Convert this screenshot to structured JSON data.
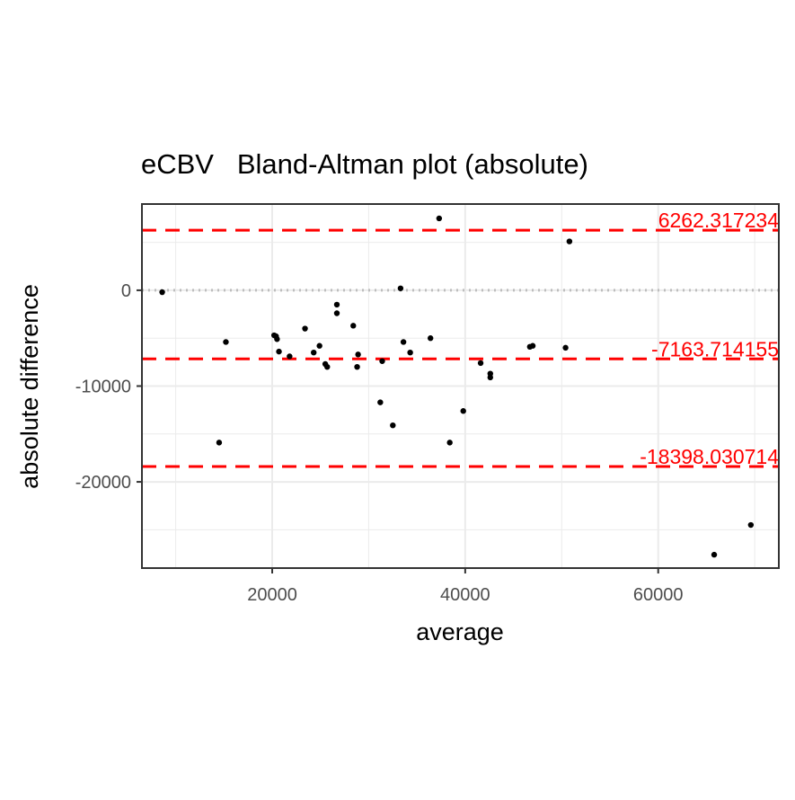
{
  "chart_data": {
    "type": "scatter",
    "title": "eCBV   Bland-Altman plot (absolute)",
    "xlabel": "average",
    "ylabel": "absolute difference",
    "xlim": [
      6500,
      72500
    ],
    "ylim": [
      -29000,
      9000
    ],
    "x_ticks": [
      20000,
      40000,
      60000
    ],
    "x_tick_labels": [
      "20000",
      "40000",
      "60000"
    ],
    "y_ticks": [
      0,
      -10000,
      -20000
    ],
    "y_tick_labels": [
      "0",
      "-10000",
      "-20000"
    ],
    "grid": true,
    "zero_line": 0,
    "reference_lines": [
      {
        "value": 6262.317234,
        "label": "6262.317234",
        "color": "#ff0000",
        "style": "dashed"
      },
      {
        "value": -7163.714155,
        "label": "-7163.714155",
        "color": "#ff0000",
        "style": "dashed"
      },
      {
        "value": -18398.030714,
        "label": "-18398.030714",
        "color": "#ff0000",
        "style": "dashed"
      }
    ],
    "points": [
      {
        "x": 8600,
        "y": -200
      },
      {
        "x": 14500,
        "y": -15900
      },
      {
        "x": 15200,
        "y": -5400
      },
      {
        "x": 20200,
        "y": -4700
      },
      {
        "x": 20400,
        "y": -4800
      },
      {
        "x": 20500,
        "y": -5100
      },
      {
        "x": 20700,
        "y": -6400
      },
      {
        "x": 21800,
        "y": -6900
      },
      {
        "x": 23400,
        "y": -4000
      },
      {
        "x": 24300,
        "y": -6500
      },
      {
        "x": 24900,
        "y": -5800
      },
      {
        "x": 25500,
        "y": -7700
      },
      {
        "x": 25700,
        "y": -8000
      },
      {
        "x": 26700,
        "y": -1500
      },
      {
        "x": 26700,
        "y": -2400
      },
      {
        "x": 28400,
        "y": -3700
      },
      {
        "x": 28800,
        "y": -8000
      },
      {
        "x": 28900,
        "y": -6700
      },
      {
        "x": 31200,
        "y": -11700
      },
      {
        "x": 31400,
        "y": -7400
      },
      {
        "x": 32500,
        "y": -14100
      },
      {
        "x": 33300,
        "y": 200
      },
      {
        "x": 33600,
        "y": -5400
      },
      {
        "x": 34300,
        "y": -6500
      },
      {
        "x": 36400,
        "y": -5000
      },
      {
        "x": 37300,
        "y": 7500
      },
      {
        "x": 38400,
        "y": -15900
      },
      {
        "x": 39800,
        "y": -12600
      },
      {
        "x": 41600,
        "y": -7600
      },
      {
        "x": 42600,
        "y": -8700
      },
      {
        "x": 42600,
        "y": -9100
      },
      {
        "x": 46700,
        "y": -5900
      },
      {
        "x": 47000,
        "y": -5800
      },
      {
        "x": 50400,
        "y": -6000
      },
      {
        "x": 50800,
        "y": 5100
      },
      {
        "x": 65800,
        "y": -27600
      },
      {
        "x": 69600,
        "y": -24500
      }
    ],
    "point_color": "#000000",
    "line_color": "#ff0000"
  }
}
